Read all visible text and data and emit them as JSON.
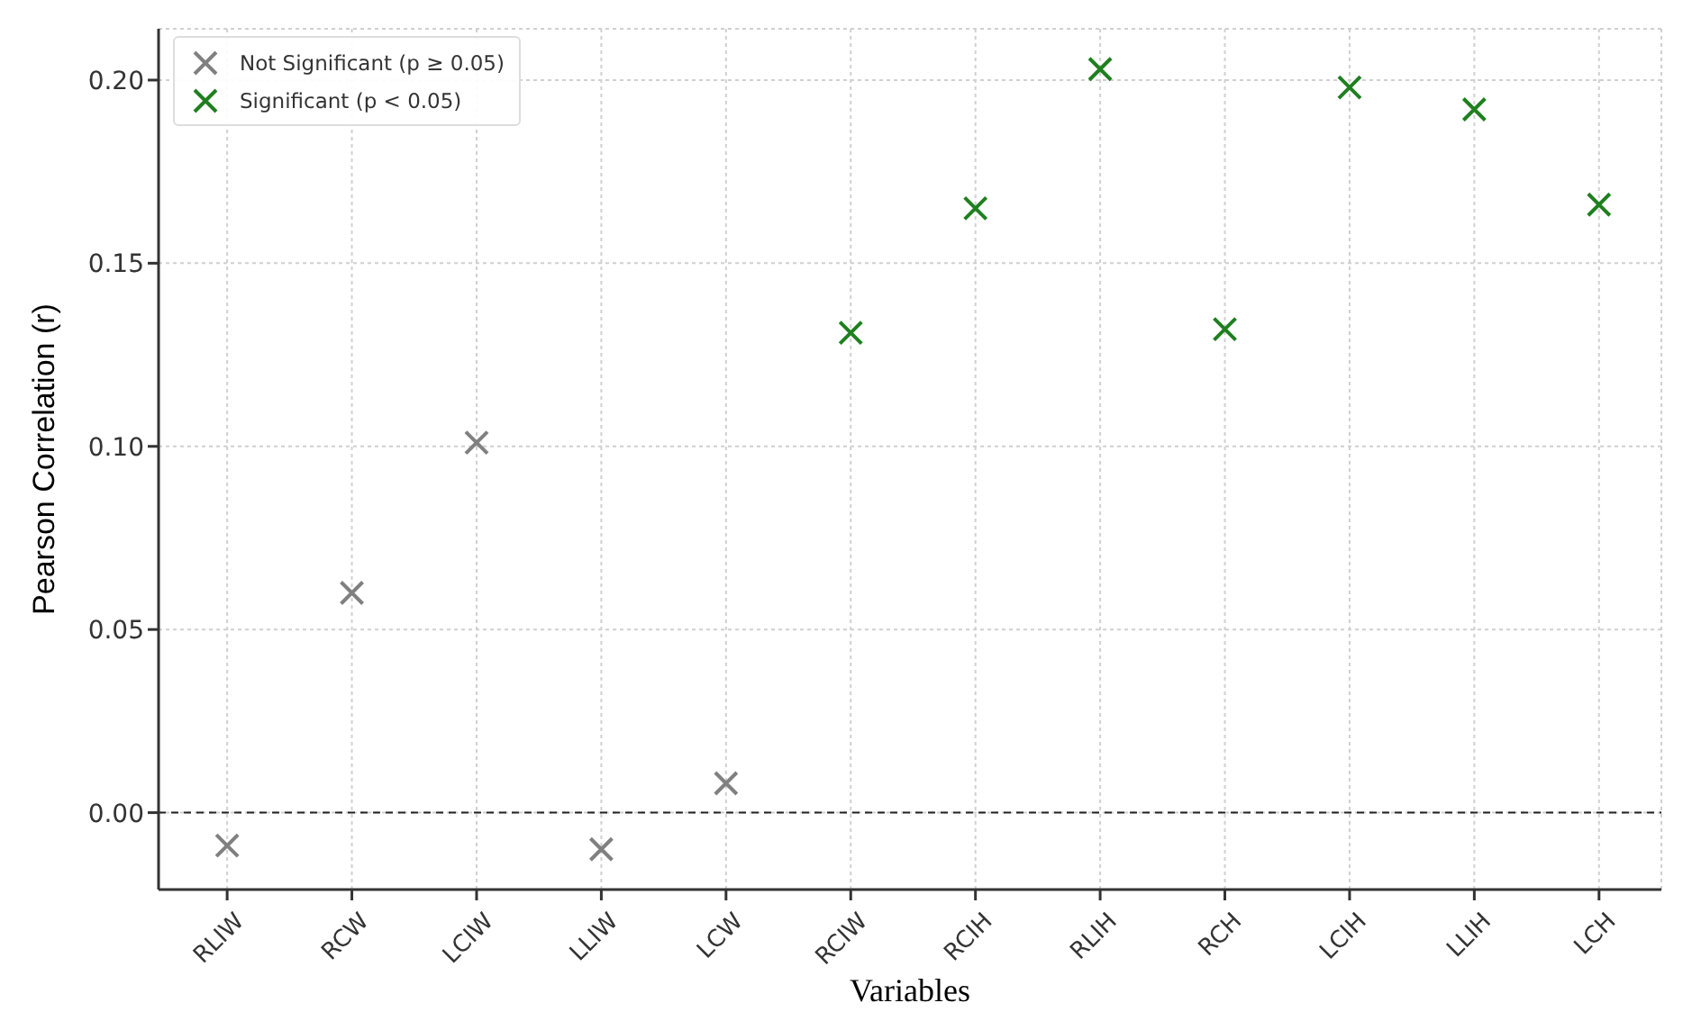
{
  "chart_data": {
    "type": "scatter",
    "xlabel": "Variables",
    "ylabel": "Pearson Correlation (r)",
    "categories": [
      "RLIW",
      "RCW",
      "LCIW",
      "LLIW",
      "LCW",
      "RCIW",
      "RCIH",
      "RLIH",
      "RCH",
      "LCIH",
      "LLIH",
      "LCH"
    ],
    "series": [
      {
        "name": "Not Significant (p ≥ 0.05)",
        "color": "#808080",
        "values": [
          -0.009,
          0.06,
          0.101,
          -0.01,
          0.008,
          null,
          null,
          null,
          null,
          null,
          null,
          null
        ]
      },
      {
        "name": "Significant (p < 0.05)",
        "color": "#1f7f1f",
        "values": [
          null,
          null,
          null,
          null,
          null,
          0.131,
          0.165,
          0.203,
          0.132,
          0.198,
          0.192,
          0.166
        ]
      }
    ],
    "ylim": [
      -0.021,
      0.214
    ],
    "yticks": [
      {
        "value": 0,
        "label": "0.00"
      },
      {
        "value": 0.05,
        "label": "0.05"
      },
      {
        "value": 0.1,
        "label": "0.10"
      },
      {
        "value": 0.15,
        "label": "0.15"
      },
      {
        "value": 0.2,
        "label": "0.20"
      }
    ],
    "ref_lines": [
      {
        "axis": "y",
        "value": 0,
        "color": "#222222",
        "line_style": "dashed"
      }
    ],
    "grid": true,
    "legend": "top left",
    "marker": "cross"
  }
}
